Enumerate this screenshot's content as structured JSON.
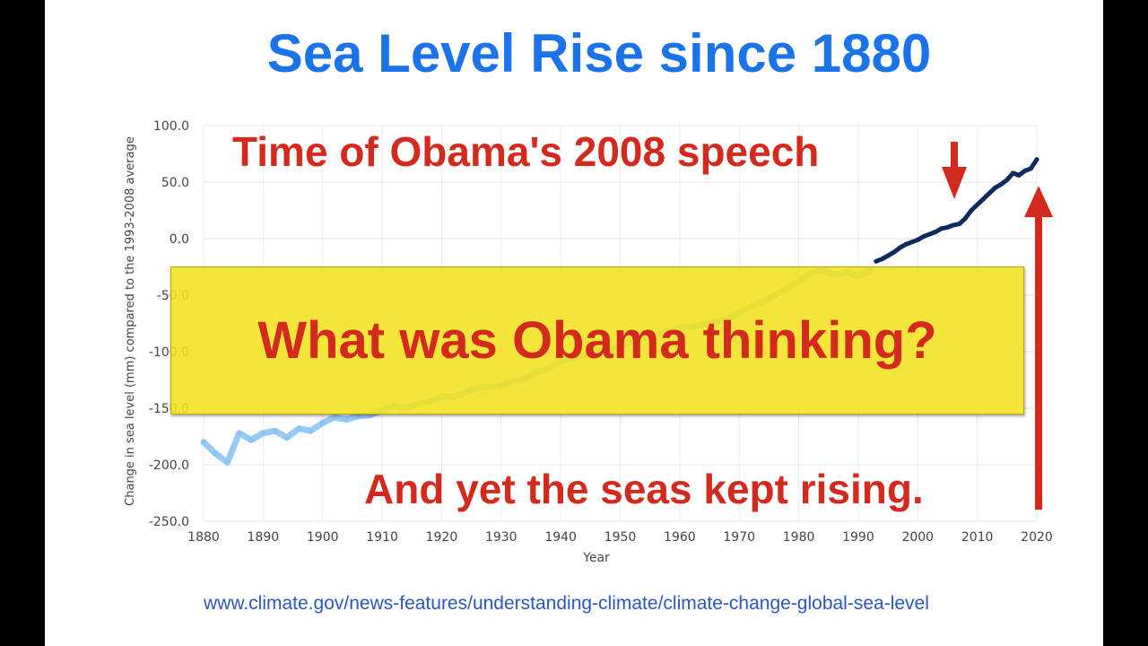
{
  "slide": {
    "title": "Sea Level Rise since 1880",
    "annotation_top": "Time of Obama's 2008 speech",
    "annotation_bottom": "And yet the seas kept rising.",
    "banner": "What was Obama thinking?",
    "source_url": "www.climate.gov/news-features/understanding-climate/climate-change-global-sea-level"
  },
  "colors": {
    "title": "#1a73e8",
    "callout_red": "#d42a1e",
    "banner_yellow": "#f3e11f",
    "tide_gauge_series": "#8cc4f4",
    "satellite_series": "#0d2b5e",
    "link": "#2a56c6"
  },
  "icons": {
    "arrow_small": "down-arrow-icon",
    "arrow_large": "up-arrow-icon"
  },
  "chart_data": {
    "type": "line",
    "title": "",
    "xlabel": "Year",
    "ylabel": "Change in sea level (mm) compared to the 1993-2008 average",
    "xlim": [
      1880,
      2020
    ],
    "ylim": [
      -250,
      100
    ],
    "x_ticks": [
      1880,
      1890,
      1900,
      1910,
      1920,
      1930,
      1940,
      1950,
      1960,
      1970,
      1980,
      1990,
      2000,
      2010,
      2020
    ],
    "y_ticks": [
      -250,
      -200,
      -150,
      -100,
      -50,
      0,
      50,
      100
    ],
    "y_tick_labels": [
      "-250.0",
      "-200.0",
      "-150.0",
      "-100.0",
      "-50.0",
      "0.0",
      "50.0",
      "100.0"
    ],
    "grid": true,
    "series": [
      {
        "color": "#8cc4f4",
        "x": [
          1880,
          1882,
          1884,
          1886,
          1888,
          1890,
          1892,
          1894,
          1896,
          1898,
          1900,
          1902,
          1904,
          1906,
          1908,
          1910,
          1912,
          1914,
          1916,
          1918,
          1920,
          1922,
          1924,
          1926,
          1928,
          1930,
          1932,
          1934,
          1936,
          1938,
          1940,
          1942,
          1944,
          1946,
          1948,
          1950,
          1952,
          1954,
          1956,
          1958,
          1960,
          1962,
          1964,
          1966,
          1968,
          1970,
          1972,
          1974,
          1976,
          1978,
          1980,
          1982,
          1984,
          1986,
          1988,
          1990,
          1992
        ],
        "values": [
          -180,
          -190,
          -198,
          -172,
          -178,
          -172,
          -170,
          -176,
          -168,
          -170,
          -163,
          -158,
          -160,
          -157,
          -156,
          -152,
          -148,
          -150,
          -146,
          -144,
          -140,
          -140,
          -136,
          -132,
          -131,
          -130,
          -126,
          -124,
          -118,
          -115,
          -108,
          -106,
          -103,
          -100,
          -98,
          -95,
          -91,
          -88,
          -85,
          -82,
          -79,
          -78,
          -76,
          -74,
          -71,
          -66,
          -60,
          -56,
          -50,
          -44,
          -38,
          -30,
          -28,
          -32,
          -30,
          -33,
          -28
        ]
      },
      {
        "color": "#0d2b5e",
        "x": [
          1993,
          1994,
          1995,
          1996,
          1997,
          1998,
          1999,
          2000,
          2001,
          2002,
          2003,
          2004,
          2005,
          2006,
          2007,
          2008,
          2009,
          2010,
          2011,
          2012,
          2013,
          2014,
          2015,
          2016,
          2017,
          2018,
          2019,
          2020
        ],
        "values": [
          -20,
          -18,
          -15,
          -12,
          -8,
          -5,
          -3,
          -1,
          2,
          4,
          6,
          9,
          10,
          12,
          13,
          18,
          25,
          30,
          35,
          40,
          45,
          48,
          52,
          58,
          56,
          60,
          62,
          70
        ]
      }
    ]
  }
}
